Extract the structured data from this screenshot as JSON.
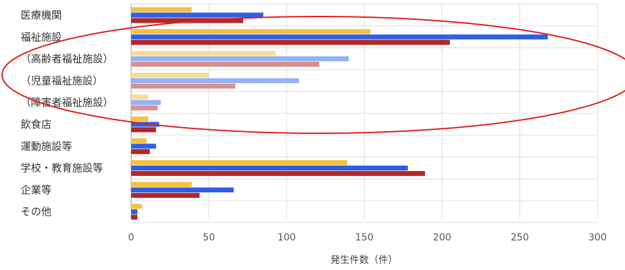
{
  "chart_data": {
    "type": "bar",
    "orientation": "horizontal",
    "title": "",
    "xlabel": "発生件数（件）",
    "ylabel": "",
    "xlim": [
      0,
      300
    ],
    "xticks": [
      0,
      50,
      100,
      150,
      200,
      250,
      300
    ],
    "grid": true,
    "legend": "none",
    "categories": [
      "医療機関",
      "福祉施設",
      "（高齢者福祉施設）",
      "（児童福祉施設）",
      "（障害者福祉施設）",
      "飲食店",
      "運動施設等",
      "学校・教育施設等",
      "企業等",
      "その他"
    ],
    "series": [
      {
        "values": [
          39,
          154,
          93,
          50,
          11,
          11,
          10,
          139,
          39,
          7
        ]
      },
      {
        "values": [
          85,
          268,
          140,
          108,
          19,
          18,
          16,
          178,
          66,
          4
        ]
      },
      {
        "values": [
          72,
          205,
          121,
          67,
          17,
          16,
          12,
          189,
          44,
          4
        ]
      }
    ],
    "annotations": [
      {
        "type": "ellipse",
        "color": "#e02020",
        "spans_categories": [
          "福祉施設",
          "（障害者福祉施設）"
        ]
      }
    ]
  },
  "colors": {
    "series_full": [
      "#f4c144",
      "#2e5fe8",
      "#b32626"
    ],
    "series_light": [
      "#f9dd97",
      "#95b2f5",
      "#d98f8f"
    ],
    "grid": "#dddddd",
    "annotation": "#e02020"
  }
}
